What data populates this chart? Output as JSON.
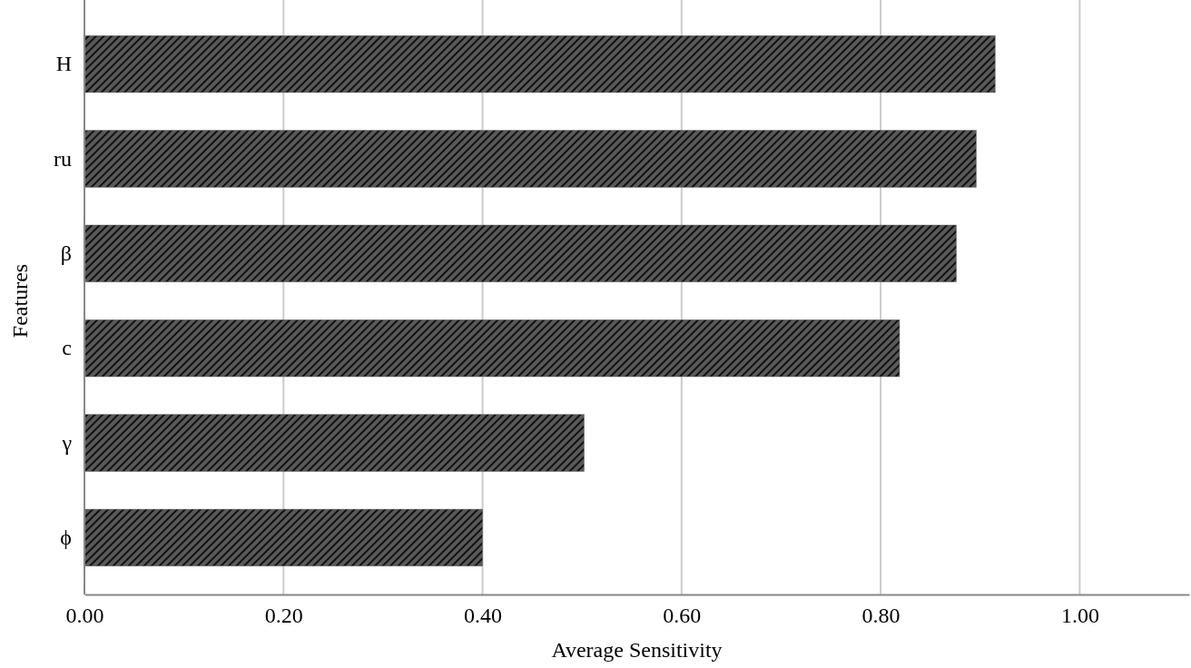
{
  "chart_data": {
    "type": "bar",
    "orientation": "horizontal",
    "xlabel": "Average Sensitivity",
    "ylabel": "Features",
    "categories": [
      "H",
      "ru",
      "β",
      "c",
      "γ",
      "ϕ"
    ],
    "values": [
      0.915,
      0.896,
      0.876,
      0.819,
      0.502,
      0.4
    ],
    "color": "#595959",
    "xlim": [
      0,
      1.11
    ],
    "xticks": [
      {
        "value": 0,
        "label": "0.00"
      },
      {
        "value": 0.2,
        "label": "0.20"
      },
      {
        "value": 0.4,
        "label": "0.40"
      },
      {
        "value": 0.6,
        "label": "0.60"
      },
      {
        "value": 0.8,
        "label": "0.80"
      },
      {
        "value": 1,
        "label": "1.00"
      }
    ],
    "grid": "x"
  }
}
